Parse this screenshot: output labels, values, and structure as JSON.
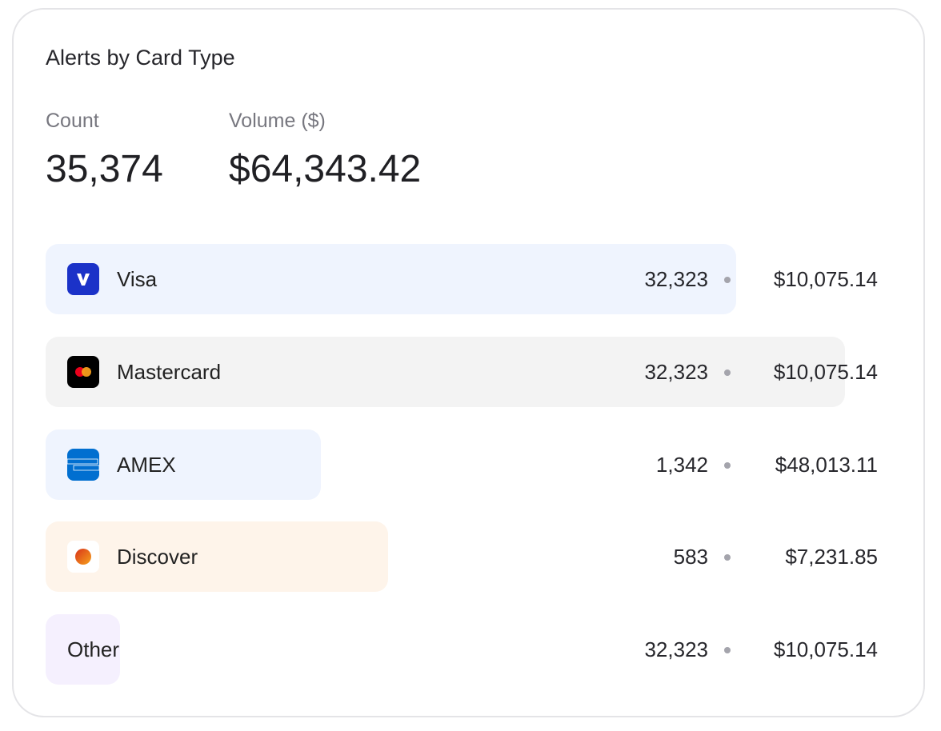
{
  "title": "Alerts by Card Type",
  "summary": {
    "count_label": "Count",
    "count_value": "35,374",
    "volume_label": "Volume ($)",
    "volume_value": "$64,343.42"
  },
  "rows": [
    {
      "name": "Visa",
      "count": "32,323",
      "amount": "$10,075.14",
      "bar_fraction": 0.864,
      "bar_color": "#eff4fe",
      "icon": "visa-icon"
    },
    {
      "name": "Mastercard",
      "count": "32,323",
      "amount": "$10,075.14",
      "bar_fraction": 1.0,
      "bar_color": "#f3f3f3",
      "icon": "mastercard-icon"
    },
    {
      "name": "AMEX",
      "count": "1,342",
      "amount": "$48,013.11",
      "bar_fraction": 0.344,
      "bar_color": "#eff4fe",
      "icon": "amex-icon"
    },
    {
      "name": "Discover",
      "count": "583",
      "amount": "$7,231.85",
      "bar_fraction": 0.428,
      "bar_color": "#fef4ea",
      "icon": "discover-icon"
    },
    {
      "name": "Other",
      "count": "32,323",
      "amount": "$10,075.14",
      "bar_fraction": 0.093,
      "bar_color": "#f5f0fe",
      "icon": null
    }
  ]
}
